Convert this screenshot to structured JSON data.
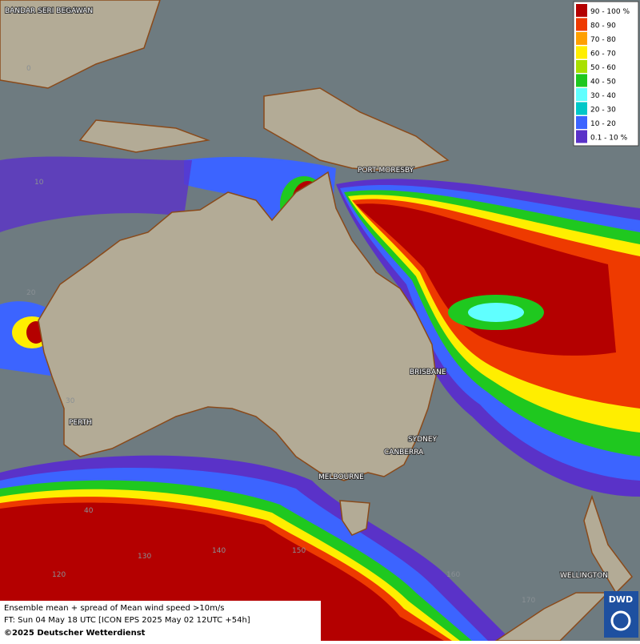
{
  "map": {
    "places": [
      "BANDAR SERI BEGAWAN",
      "PORT MORESBY",
      "BRISBANE",
      "PERTH",
      "SYDNEY",
      "CANBERRA",
      "MELBOURNE",
      "WELLINGTON"
    ],
    "grid_labels": [
      "0",
      "10",
      "20",
      "30",
      "40",
      "120",
      "130",
      "140",
      "150",
      "160",
      "170"
    ]
  },
  "legend": {
    "items": [
      {
        "label": "90 - 100 %",
        "color": "#b40000"
      },
      {
        "label": "80 - 90",
        "color": "#ee3a00"
      },
      {
        "label": "70 - 80",
        "color": "#ffa000"
      },
      {
        "label": "60 - 70",
        "color": "#ffee00"
      },
      {
        "label": "50 - 60",
        "color": "#a8e000"
      },
      {
        "label": "40 - 50",
        "color": "#1fc81f"
      },
      {
        "label": "30 - 40",
        "color": "#60ffff"
      },
      {
        "label": "20 - 30",
        "color": "#00c8c8"
      },
      {
        "label": "10 - 20",
        "color": "#3c64ff"
      },
      {
        "label": "0.1 - 10 %",
        "color": "#5a32c8"
      }
    ]
  },
  "footer": {
    "lines": [
      "Ensemble mean + spread of Mean wind speed >10m/s",
      "FT: Sun 04 May 18 UTC [ICON EPS 2025 May 02 12UTC +54h]",
      "©2025 Deutscher Wetterdienst"
    ]
  },
  "logo": "DWD"
}
